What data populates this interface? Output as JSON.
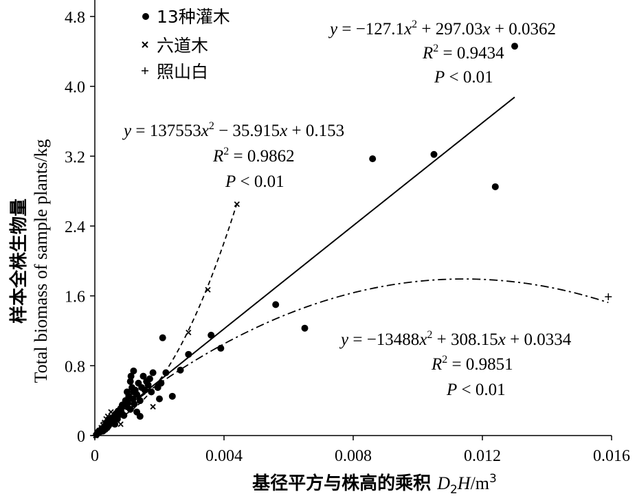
{
  "chart_data": {
    "type": "scatter",
    "xlabel_main": "基径平方与株高的乘积 ",
    "xlabel_var": "D",
    "xlabel_sub": "2",
    "xlabel_var2": "H",
    "xlabel_unit": "/m",
    "xlabel_sup": "3",
    "ylabel_cn": "样本全株生物量",
    "ylabel_en": "Total  biomass of sample plants/kg",
    "xlim": [
      0,
      0.016
    ],
    "ylim": [
      0,
      4.8
    ],
    "x_ticks": [
      0,
      0.004,
      0.008,
      0.012,
      0.016
    ],
    "x_tick_labels": [
      "0",
      "0.004",
      "0.008",
      "0.012",
      "0.016"
    ],
    "y_ticks": [
      0,
      0.8,
      1.6,
      2.4,
      3.2,
      4.0,
      4.8
    ],
    "y_tick_labels": [
      "0",
      "0.8",
      "1.6",
      "2.4",
      "3.2",
      "4.0",
      "4.8"
    ],
    "legend_position": "top-left",
    "series": [
      {
        "name": "13种灌木",
        "marker": "dot",
        "points": [
          [
            5e-05,
            0.01
          ],
          [
            0.0001,
            0.03
          ],
          [
            0.00012,
            0.05
          ],
          [
            0.00015,
            0.04
          ],
          [
            0.0002,
            0.06
          ],
          [
            0.00022,
            0.08
          ],
          [
            0.00025,
            0.05
          ],
          [
            0.0003,
            0.1
          ],
          [
            0.00032,
            0.07
          ],
          [
            0.00035,
            0.12
          ],
          [
            0.00038,
            0.09
          ],
          [
            0.0004,
            0.15
          ],
          [
            0.00042,
            0.11
          ],
          [
            0.00045,
            0.18
          ],
          [
            0.0005,
            0.14
          ],
          [
            0.00052,
            0.2
          ],
          [
            0.00055,
            0.16
          ],
          [
            0.0006,
            0.22
          ],
          [
            0.00062,
            0.13
          ],
          [
            0.00065,
            0.25
          ],
          [
            0.0007,
            0.19
          ],
          [
            0.00072,
            0.28
          ],
          [
            0.00075,
            0.24
          ],
          [
            0.0008,
            0.31
          ],
          [
            0.00082,
            0.27
          ],
          [
            0.00085,
            0.35
          ],
          [
            0.0009,
            0.23
          ],
          [
            0.00095,
            0.4
          ],
          [
            0.001,
            0.33
          ],
          [
            0.001,
            0.5
          ],
          [
            0.00102,
            0.38
          ],
          [
            0.00105,
            0.45
          ],
          [
            0.0011,
            0.62
          ],
          [
            0.0011,
            0.3
          ],
          [
            0.00112,
            0.68
          ],
          [
            0.00115,
            0.55
          ],
          [
            0.00118,
            0.42
          ],
          [
            0.0012,
            0.5
          ],
          [
            0.0012,
            0.74
          ],
          [
            0.00122,
            0.36
          ],
          [
            0.00125,
            0.52
          ],
          [
            0.0013,
            0.27
          ],
          [
            0.0013,
            0.47
          ],
          [
            0.00135,
            0.6
          ],
          [
            0.0014,
            0.4
          ],
          [
            0.0014,
            0.22
          ],
          [
            0.00145,
            0.55
          ],
          [
            0.0015,
            0.68
          ],
          [
            0.00155,
            0.52
          ],
          [
            0.0016,
            0.62
          ],
          [
            0.00165,
            0.58
          ],
          [
            0.0017,
            0.65
          ],
          [
            0.00175,
            0.5
          ],
          [
            0.0018,
            0.72
          ],
          [
            0.00195,
            0.55
          ],
          [
            0.002,
            0.42
          ],
          [
            0.00205,
            0.6
          ],
          [
            0.0021,
            1.12
          ],
          [
            0.0022,
            0.72
          ],
          [
            0.0024,
            0.45
          ],
          [
            0.00265,
            0.75
          ],
          [
            0.0029,
            0.93
          ],
          [
            0.0036,
            1.15
          ],
          [
            0.0039,
            1.0
          ],
          [
            0.0056,
            1.5
          ],
          [
            0.0065,
            1.23
          ],
          [
            0.0086,
            3.17
          ],
          [
            0.0105,
            3.22
          ],
          [
            0.0124,
            2.85
          ],
          [
            0.013,
            4.46
          ]
        ]
      },
      {
        "name": "六道木",
        "marker": "x",
        "points": [
          [
            3e-05,
            0.0
          ],
          [
            8e-05,
            0.03
          ],
          [
            0.00015,
            0.06
          ],
          [
            0.0002,
            0.09
          ],
          [
            0.00025,
            0.12
          ],
          [
            0.0003,
            0.15
          ],
          [
            0.00035,
            0.19
          ],
          [
            0.0004,
            0.22
          ],
          [
            0.0005,
            0.27
          ],
          [
            0.0006,
            0.2
          ],
          [
            0.0008,
            0.13
          ],
          [
            0.0018,
            0.33
          ],
          [
            0.0029,
            1.18
          ],
          [
            0.0035,
            1.67
          ],
          [
            0.0044,
            2.65
          ]
        ]
      },
      {
        "name": "照山白",
        "marker": "plus",
        "points": [
          [
            0.0,
            0.0
          ],
          [
            5e-05,
            0.02
          ],
          [
            0.0001,
            0.04
          ],
          [
            0.0002,
            0.08
          ],
          [
            0.0003,
            0.1
          ],
          [
            0.0159,
            1.59
          ]
        ]
      }
    ],
    "fits": [
      {
        "series": "13种灌木",
        "style": "solid",
        "a": -127.1,
        "b": 297.03,
        "c": 0.0362,
        "x_range": [
          0,
          0.013
        ]
      },
      {
        "series": "六道木",
        "style": "dashed",
        "a": 137553,
        "b": -35.915,
        "c": 0.153,
        "x_range": [
          0.0002,
          0.0044
        ]
      },
      {
        "series": "照山白",
        "style": "dashdot",
        "a": -13488,
        "b": 308.15,
        "c": 0.0334,
        "x_range": [
          0.0001,
          0.0159
        ]
      }
    ],
    "annotations": [
      {
        "lines": [
          "y = −127.1x² +  297.03x + 0.0362",
          "R² = 0.9434",
          "P < 0.01"
        ]
      },
      {
        "lines": [
          "y = 137553x² −  35.915x + 0.153",
          "R² = 0.9862",
          "P < 0.01"
        ]
      },
      {
        "lines": [
          "y = −13488x² + 308.15x + 0.0334",
          "R² = 0.9851",
          "P < 0.01"
        ]
      }
    ]
  }
}
